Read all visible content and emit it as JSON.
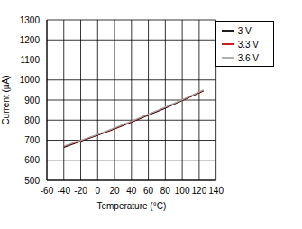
{
  "chart_data": {
    "type": "line",
    "x_label": "Temperature (°C)",
    "y_label": "Current (µA)",
    "x": [
      -40,
      -20,
      0,
      20,
      40,
      60,
      80,
      100,
      125
    ],
    "series": [
      {
        "name": "3 V",
        "color": "#000000",
        "values": [
          665,
          695,
          725,
          757,
          790,
          825,
          860,
          898,
          945
        ]
      },
      {
        "name": "3.3 V",
        "color": "#c00000",
        "values": [
          668,
          697,
          727,
          759,
          793,
          828,
          863,
          900,
          948
        ]
      },
      {
        "name": "3.6 V",
        "color": "#a6a6a6",
        "values": [
          670,
          699,
          729,
          761,
          795,
          830,
          865,
          902,
          950
        ]
      }
    ],
    "xlim": [
      -60,
      140
    ],
    "xticks": [
      -60,
      -40,
      -20,
      0,
      20,
      40,
      60,
      80,
      100,
      120,
      140
    ],
    "ylim": [
      500,
      1300
    ],
    "yticks": [
      500,
      600,
      700,
      800,
      900,
      1000,
      1100,
      1200,
      1300
    ],
    "grid": true,
    "legend": "upper right"
  }
}
